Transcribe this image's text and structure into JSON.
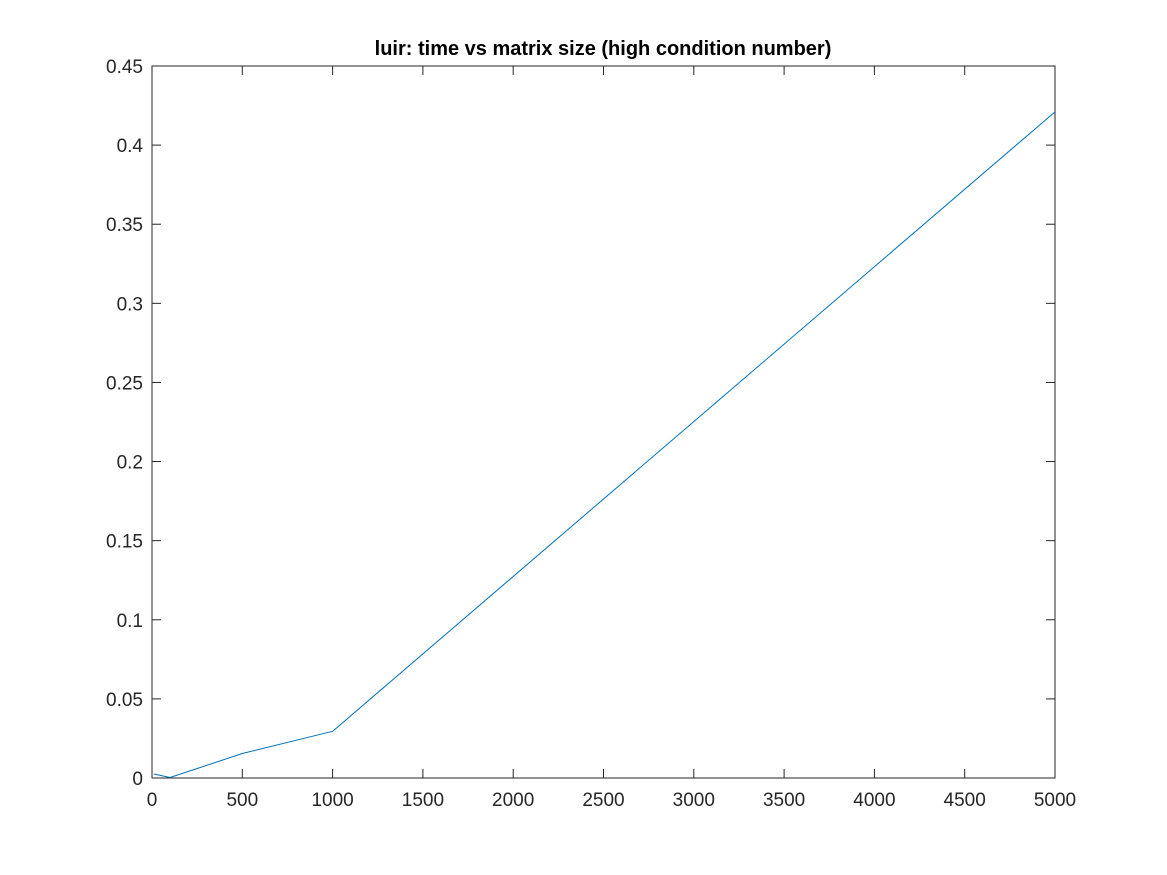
{
  "chart_data": {
    "type": "line",
    "title": "luir: time vs matrix size (high condition number)",
    "xlabel": "",
    "ylabel": "",
    "xlim": [
      0,
      5000
    ],
    "ylim": [
      0,
      0.45
    ],
    "xticks": [
      0,
      500,
      1000,
      1500,
      2000,
      2500,
      3000,
      3500,
      4000,
      4500,
      5000
    ],
    "xtick_labels": [
      "0",
      "500",
      "1000",
      "1500",
      "2000",
      "2500",
      "3000",
      "3500",
      "4000",
      "4500",
      "5000"
    ],
    "yticks": [
      0,
      0.05,
      0.1,
      0.15,
      0.2,
      0.25,
      0.3,
      0.35,
      0.4,
      0.45
    ],
    "ytick_labels": [
      "0",
      "0.05",
      "0.1",
      "0.15",
      "0.2",
      "0.25",
      "0.3",
      "0.35",
      "0.4",
      "0.45"
    ],
    "grid": false,
    "series": [
      {
        "color": "#0072BD",
        "x": [
          10,
          100,
          500,
          1000,
          5000
        ],
        "y": [
          0.0025,
          0.0003,
          0.0155,
          0.0295,
          0.421
        ]
      }
    ]
  }
}
